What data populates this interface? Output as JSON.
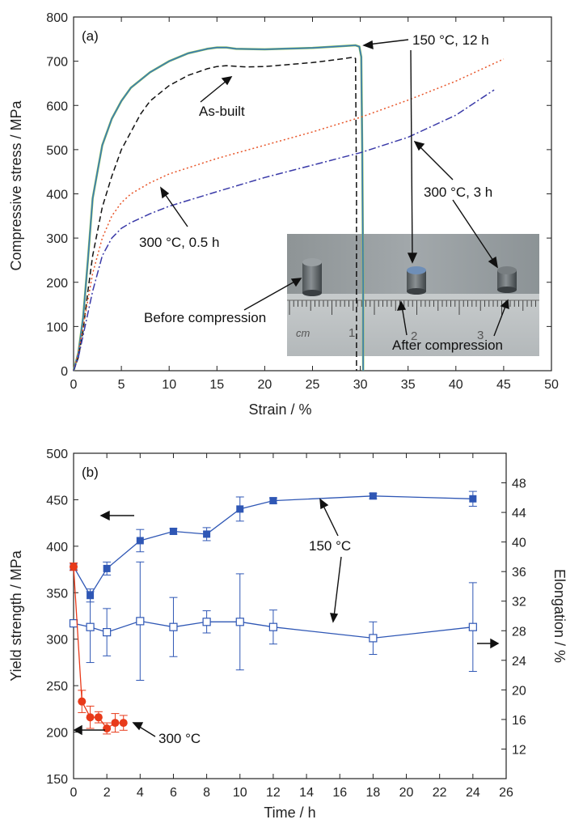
{
  "chart_data": [
    {
      "type": "line",
      "panel_label": "(a)",
      "xlabel": "Strain / %",
      "ylabel": "Compressive stress / MPa",
      "xlim": [
        0,
        50
      ],
      "ylim": [
        0,
        800
      ],
      "x_ticks": [
        0,
        5,
        10,
        15,
        20,
        25,
        30,
        35,
        40,
        45,
        50
      ],
      "y_ticks": [
        0,
        100,
        200,
        300,
        400,
        500,
        600,
        700,
        800
      ],
      "series": [
        {
          "name": "150 °C, 12 h",
          "color": "#3a7ab8",
          "style": "solid",
          "points": [
            [
              0,
              0
            ],
            [
              0.5,
              40
            ],
            [
              1,
              120
            ],
            [
              1.5,
              250
            ],
            [
              2,
              390
            ],
            [
              2.5,
              450
            ],
            [
              3,
              510
            ],
            [
              4,
              570
            ],
            [
              5,
              610
            ],
            [
              6,
              640
            ],
            [
              8,
              675
            ],
            [
              10,
              700
            ],
            [
              12,
              718
            ],
            [
              14,
              728
            ],
            [
              15,
              731
            ],
            [
              16,
              731
            ],
            [
              17,
              728
            ],
            [
              20,
              727
            ],
            [
              25,
              730
            ],
            [
              28,
              734
            ],
            [
              29.5,
              736
            ],
            [
              29.9,
              733
            ],
            [
              30.1,
              710
            ],
            [
              30.2,
              500
            ],
            [
              30.3,
              200
            ],
            [
              30.3,
              0
            ]
          ]
        },
        {
          "name": "As-built",
          "color": "#111111",
          "style": "dashed",
          "points": [
            [
              0,
              0
            ],
            [
              0.5,
              30
            ],
            [
              1,
              90
            ],
            [
              1.5,
              180
            ],
            [
              2,
              260
            ],
            [
              3,
              370
            ],
            [
              4,
              440
            ],
            [
              5,
              500
            ],
            [
              6,
              540
            ],
            [
              7,
              580
            ],
            [
              8,
              610
            ],
            [
              10,
              645
            ],
            [
              12,
              668
            ],
            [
              14,
              683
            ],
            [
              15,
              688
            ],
            [
              16,
              690
            ],
            [
              18,
              687
            ],
            [
              20,
              688
            ],
            [
              25,
              697
            ],
            [
              28,
              705
            ],
            [
              29.3,
              709
            ],
            [
              29.5,
              706
            ],
            [
              29.6,
              400
            ],
            [
              29.6,
              0
            ]
          ]
        },
        {
          "name": "300 °C, 0.5 h",
          "color": "#e8562a",
          "style": "dotted",
          "points": [
            [
              0,
              0
            ],
            [
              0.5,
              40
            ],
            [
              1,
              100
            ],
            [
              2,
              220
            ],
            [
              3,
              300
            ],
            [
              4,
              350
            ],
            [
              5,
              380
            ],
            [
              6,
              400
            ],
            [
              8,
              425
            ],
            [
              10,
              445
            ],
            [
              15,
              480
            ],
            [
              20,
              510
            ],
            [
              25,
              540
            ],
            [
              30,
              573
            ],
            [
              35,
              612
            ],
            [
              40,
              655
            ],
            [
              45,
              705
            ]
          ]
        },
        {
          "name": "300 °C, 3 h",
          "color": "#3a3aa8",
          "style": "dashdot",
          "points": [
            [
              0,
              0
            ],
            [
              0.5,
              30
            ],
            [
              1,
              80
            ],
            [
              2,
              180
            ],
            [
              3,
              260
            ],
            [
              4,
              300
            ],
            [
              5,
              322
            ],
            [
              6,
              335
            ],
            [
              8,
              355
            ],
            [
              10,
              372
            ],
            [
              15,
              405
            ],
            [
              20,
              437
            ],
            [
              25,
              465
            ],
            [
              30,
              493
            ],
            [
              35,
              528
            ],
            [
              40,
              578
            ],
            [
              44,
              635
            ]
          ]
        }
      ],
      "annotations": [
        {
          "text": "As-built",
          "x": 14.5,
          "y": 585
        },
        {
          "text": "150 °C, 12 h",
          "x": 37,
          "y": 738
        },
        {
          "text": "300 °C, 3 h",
          "x": 38.5,
          "y": 400
        },
        {
          "text": "300 °C, 0.5 h",
          "x": 7,
          "y": 300
        },
        {
          "text": "Before compression",
          "x": 7.5,
          "y": 140
        },
        {
          "text": "After compression",
          "x": 34,
          "y": 60
        }
      ],
      "inset_photo": {
        "scale_numbers": [
          "1",
          "2",
          "3"
        ],
        "scale_unit": "cm"
      }
    },
    {
      "type": "scatter",
      "panel_label": "(b)",
      "xlabel": "Time / h",
      "ylabel": "Yield strength / MPa",
      "y2label": "Elongation / %",
      "xlim": [
        0,
        26
      ],
      "ylim": [
        150,
        500
      ],
      "y2lim": [
        8,
        52
      ],
      "x_ticks": [
        0,
        2,
        4,
        6,
        8,
        10,
        12,
        14,
        16,
        18,
        20,
        22,
        24,
        26
      ],
      "y_ticks": [
        150,
        200,
        250,
        300,
        350,
        400,
        450,
        500
      ],
      "y2_ticks": [
        12,
        16,
        20,
        24,
        28,
        32,
        36,
        40,
        44,
        48
      ],
      "series": [
        {
          "name": "150 °C yield strength",
          "color": "#2f57b5",
          "marker": "square-filled",
          "axis": "left",
          "x": [
            0,
            1,
            2,
            4,
            6,
            8,
            10,
            12,
            18,
            24
          ],
          "y": [
            378,
            347,
            376,
            406,
            416,
            413,
            440,
            449,
            454,
            451
          ],
          "err": [
            4,
            7,
            7,
            12,
            3,
            7,
            13,
            3,
            3,
            8
          ]
        },
        {
          "name": "150 °C elongation",
          "color": "#2f57b5",
          "marker": "square-open",
          "axis": "right",
          "x": [
            0,
            1,
            2,
            4,
            6,
            8,
            10,
            12,
            18,
            24
          ],
          "y": [
            29.0,
            28.5,
            27.8,
            29.3,
            28.5,
            29.2,
            29.2,
            28.5,
            27.0,
            28.5
          ],
          "err": [
            0,
            4.8,
            3.2,
            8.0,
            4.0,
            1.5,
            6.5,
            2.3,
            2.2,
            6.0
          ]
        },
        {
          "name": "300 °C yield strength",
          "color": "#e83a1a",
          "marker": "circle-filled",
          "axis": "left",
          "x": [
            0,
            0.5,
            1,
            1.5,
            2,
            2.5,
            3
          ],
          "y": [
            378,
            233,
            216,
            216,
            204,
            210,
            210
          ],
          "err": [
            4,
            12,
            12,
            6,
            6,
            10,
            8
          ]
        }
      ],
      "annotations": [
        {
          "text": "150 °C",
          "x": 14,
          "y": 355
        },
        {
          "text": "300 °C",
          "x": 9.5,
          "y": 200
        }
      ]
    }
  ]
}
